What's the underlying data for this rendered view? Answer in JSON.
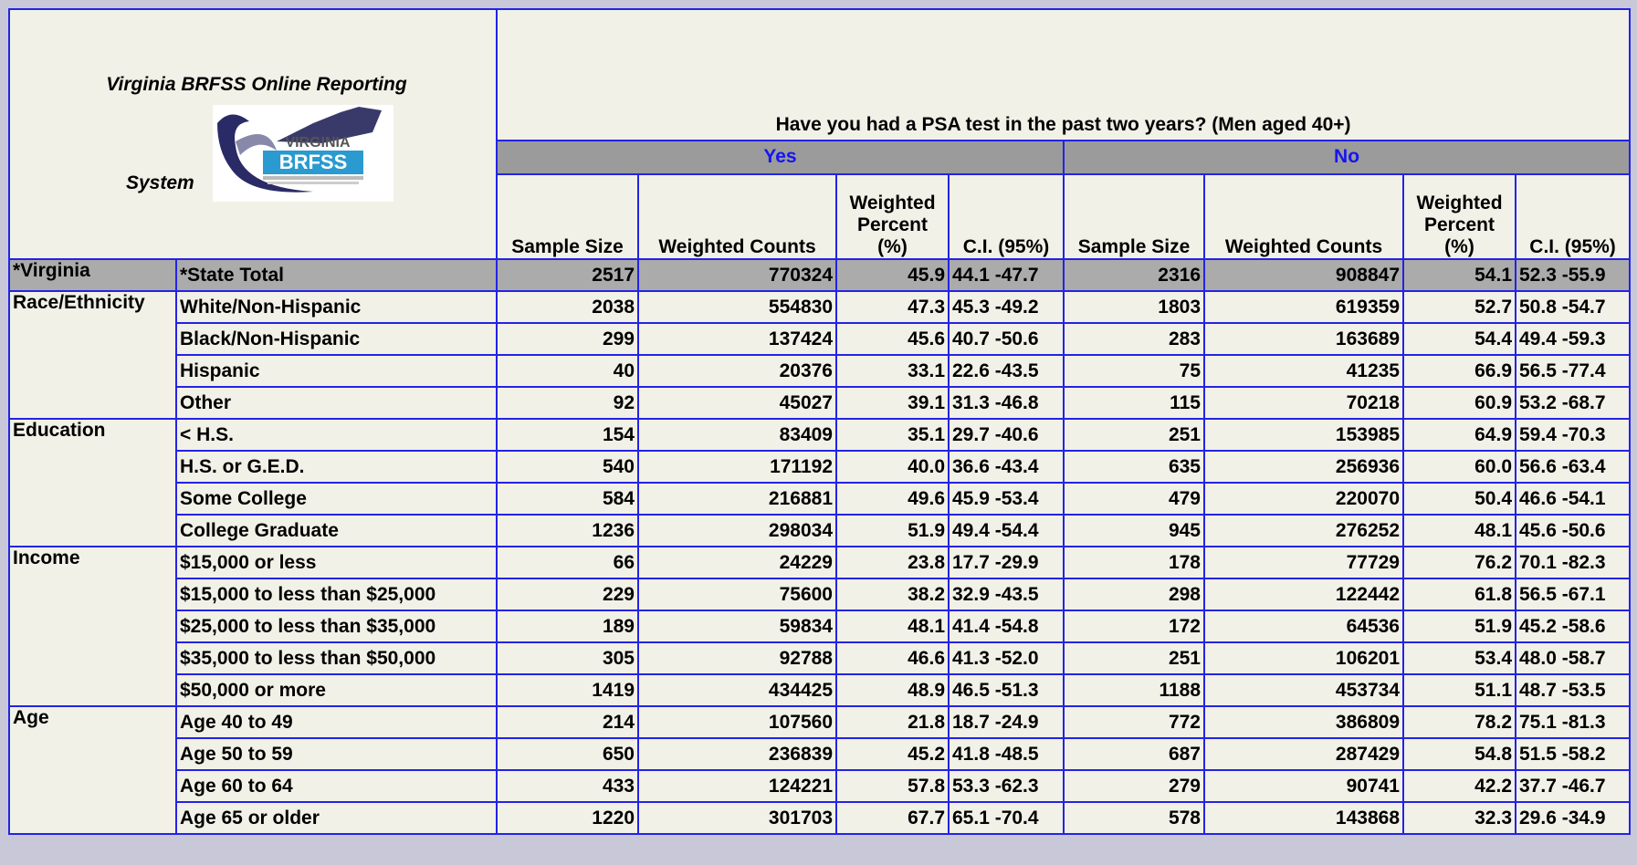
{
  "header": {
    "title": "Virginia BRFSS Online Reporting",
    "title_end": "System",
    "logo": {
      "top": "VIRGINIA",
      "bottom": "BRFSS"
    },
    "question": "Have you had a PSA test in the past two years? (Men aged 40+)",
    "groups": [
      "Yes",
      "No"
    ],
    "columns": [
      "Sample Size",
      "Weighted Counts",
      "Weighted Percent (%)",
      "C.I. (95%)"
    ]
  },
  "table": {
    "sections": [
      {
        "label": "*Virginia",
        "rows": [
          {
            "label": "*State Total",
            "yes": [
              "2517",
              "770324",
              "45.9",
              "44.1 -47.7"
            ],
            "no": [
              "2316",
              "908847",
              "54.1",
              "52.3 -55.9"
            ]
          }
        ]
      },
      {
        "label": "Race/Ethnicity",
        "rows": [
          {
            "label": "White/Non-Hispanic",
            "yes": [
              "2038",
              "554830",
              "47.3",
              "45.3 -49.2"
            ],
            "no": [
              "1803",
              "619359",
              "52.7",
              "50.8 -54.7"
            ]
          },
          {
            "label": "Black/Non-Hispanic",
            "yes": [
              "299",
              "137424",
              "45.6",
              "40.7 -50.6"
            ],
            "no": [
              "283",
              "163689",
              "54.4",
              "49.4 -59.3"
            ]
          },
          {
            "label": "Hispanic",
            "yes": [
              "40",
              "20376",
              "33.1",
              "22.6 -43.5"
            ],
            "no": [
              "75",
              "41235",
              "66.9",
              "56.5 -77.4"
            ]
          },
          {
            "label": "Other",
            "yes": [
              "92",
              "45027",
              "39.1",
              "31.3 -46.8"
            ],
            "no": [
              "115",
              "70218",
              "60.9",
              "53.2 -68.7"
            ]
          }
        ]
      },
      {
        "label": "Education",
        "rows": [
          {
            "label": "< H.S.",
            "yes": [
              "154",
              "83409",
              "35.1",
              "29.7 -40.6"
            ],
            "no": [
              "251",
              "153985",
              "64.9",
              "59.4 -70.3"
            ]
          },
          {
            "label": "H.S. or G.E.D.",
            "yes": [
              "540",
              "171192",
              "40.0",
              "36.6 -43.4"
            ],
            "no": [
              "635",
              "256936",
              "60.0",
              "56.6 -63.4"
            ]
          },
          {
            "label": "Some College",
            "yes": [
              "584",
              "216881",
              "49.6",
              "45.9 -53.4"
            ],
            "no": [
              "479",
              "220070",
              "50.4",
              "46.6 -54.1"
            ]
          },
          {
            "label": "College Graduate",
            "yes": [
              "1236",
              "298034",
              "51.9",
              "49.4 -54.4"
            ],
            "no": [
              "945",
              "276252",
              "48.1",
              "45.6 -50.6"
            ]
          }
        ]
      },
      {
        "label": "Income",
        "rows": [
          {
            "label": "$15,000 or less",
            "yes": [
              "66",
              "24229",
              "23.8",
              "17.7 -29.9"
            ],
            "no": [
              "178",
              "77729",
              "76.2",
              "70.1 -82.3"
            ]
          },
          {
            "label": "$15,000 to less than $25,000",
            "yes": [
              "229",
              "75600",
              "38.2",
              "32.9 -43.5"
            ],
            "no": [
              "298",
              "122442",
              "61.8",
              "56.5 -67.1"
            ]
          },
          {
            "label": "$25,000 to less than $35,000",
            "yes": [
              "189",
              "59834",
              "48.1",
              "41.4 -54.8"
            ],
            "no": [
              "172",
              "64536",
              "51.9",
              "45.2 -58.6"
            ]
          },
          {
            "label": "$35,000 to less than $50,000",
            "yes": [
              "305",
              "92788",
              "46.6",
              "41.3 -52.0"
            ],
            "no": [
              "251",
              "106201",
              "53.4",
              "48.0 -58.7"
            ]
          },
          {
            "label": "$50,000 or more",
            "yes": [
              "1419",
              "434425",
              "48.9",
              "46.5 -51.3"
            ],
            "no": [
              "1188",
              "453734",
              "51.1",
              "48.7 -53.5"
            ]
          }
        ]
      },
      {
        "label": "Age",
        "rows": [
          {
            "label": "Age 40 to 49",
            "yes": [
              "214",
              "107560",
              "21.8",
              "18.7 -24.9"
            ],
            "no": [
              "772",
              "386809",
              "78.2",
              "75.1 -81.3"
            ]
          },
          {
            "label": "Age 50 to 59",
            "yes": [
              "650",
              "236839",
              "45.2",
              "41.8 -48.5"
            ],
            "no": [
              "687",
              "287429",
              "54.8",
              "51.5 -58.2"
            ]
          },
          {
            "label": "Age 60 to 64",
            "yes": [
              "433",
              "124221",
              "57.8",
              "53.3 -62.3"
            ],
            "no": [
              "279",
              "90741",
              "42.2",
              "37.7 -46.7"
            ]
          },
          {
            "label": "Age 65 or older",
            "yes": [
              "1220",
              "301703",
              "67.7",
              "65.1 -70.4"
            ],
            "no": [
              "578",
              "143868",
              "32.3",
              "29.6 -34.9"
            ]
          }
        ]
      }
    ]
  }
}
